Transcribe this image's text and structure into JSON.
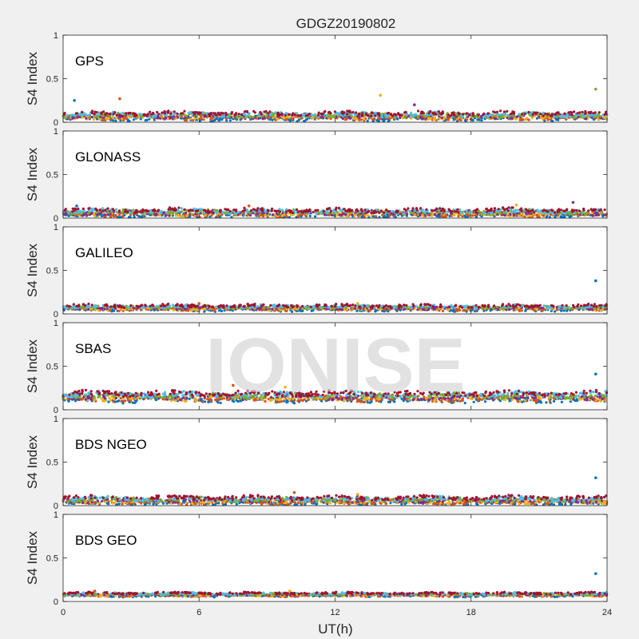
{
  "title": "GDGZ20190802",
  "watermark": "IONISE",
  "chart_data": {
    "type": "scatter",
    "title": "GDGZ20190802",
    "xlabel": "UT(h)",
    "ylabel": "S4 Index",
    "xlim": [
      0,
      24
    ],
    "ylim": [
      0,
      1
    ],
    "xticks": [
      "0",
      "6",
      "12",
      "18",
      "24"
    ],
    "yticks": [
      "0",
      "0.5",
      "1"
    ],
    "grid": false,
    "series_colors": [
      "#0072BD",
      "#D95319",
      "#EDB120",
      "#7E2F8E",
      "#77AC30",
      "#4DBEEE",
      "#A2142F"
    ],
    "panels": [
      {
        "label": "GPS",
        "base": 0.07,
        "spread": 0.04,
        "outliers": [
          [
            0.5,
            0.25
          ],
          [
            2.5,
            0.27
          ],
          [
            14.0,
            0.31
          ],
          [
            15.5,
            0.2
          ],
          [
            23.5,
            0.38
          ]
        ]
      },
      {
        "label": "GLONASS",
        "base": 0.06,
        "spread": 0.04,
        "outliers": [
          [
            0.6,
            0.14
          ],
          [
            8.2,
            0.14
          ],
          [
            20.0,
            0.15
          ],
          [
            22.5,
            0.18
          ]
        ]
      },
      {
        "label": "GALILEO",
        "base": 0.07,
        "spread": 0.03,
        "outliers": [
          [
            23.5,
            0.38
          ],
          [
            6.0,
            0.12
          ],
          [
            13.0,
            0.12
          ]
        ]
      },
      {
        "label": "SBAS",
        "base": 0.15,
        "spread": 0.05,
        "outliers": [
          [
            23.5,
            0.41
          ],
          [
            7.5,
            0.28
          ],
          [
            9.8,
            0.26
          ]
        ]
      },
      {
        "label": "BDS NGEO",
        "base": 0.06,
        "spread": 0.04,
        "outliers": [
          [
            23.5,
            0.32
          ],
          [
            10.2,
            0.15
          ],
          [
            13.0,
            0.13
          ]
        ]
      },
      {
        "label": "BDS GEO",
        "base": 0.08,
        "spread": 0.02,
        "outliers": [
          [
            23.5,
            0.32
          ],
          [
            1.4,
            0.12
          ],
          [
            10.0,
            0.12
          ]
        ]
      }
    ]
  }
}
